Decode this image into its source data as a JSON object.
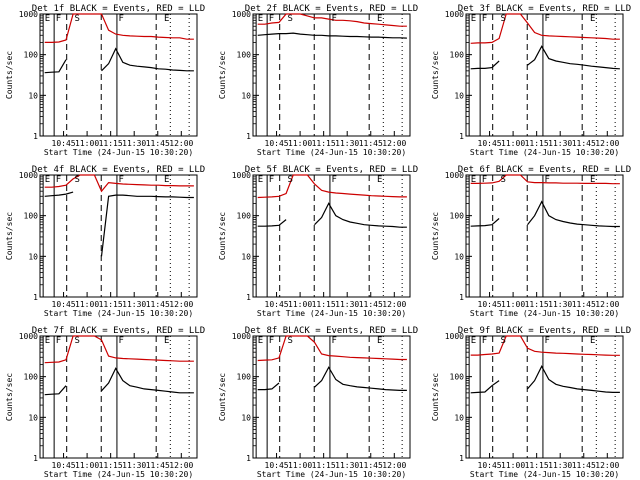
{
  "chart_data": [
    {
      "type": "line",
      "title": "Det 1f BLACK = Events, RED = LLD",
      "xlabel": "Start Time (24-Jun-15 10:30:20)",
      "ylabel": "Counts/sec",
      "xticks": [
        "10:45",
        "11:00",
        "11:15",
        "11:30",
        "11:45",
        "12:00"
      ],
      "yticks": [
        "1",
        "10",
        "100",
        "1000"
      ],
      "ylim": [
        1,
        1000
      ],
      "yscale": "log",
      "markers": [
        "E",
        "F",
        "S",
        "F",
        "E"
      ],
      "series": [
        {
          "name": "Events",
          "color": "#000000",
          "values": [
            36,
            37,
            38,
            75,
            null,
            null,
            null,
            null,
            40,
            60,
            140,
            65,
            55,
            52,
            50,
            48,
            45,
            44,
            42,
            41,
            40,
            40
          ]
        },
        {
          "name": "LLD",
          "color": "#cc0000",
          "values": [
            200,
            200,
            205,
            230,
            1000,
            1000,
            1000,
            1000,
            1000,
            400,
            320,
            300,
            290,
            285,
            280,
            280,
            270,
            265,
            260,
            260,
            240,
            240
          ]
        }
      ]
    },
    {
      "type": "line",
      "title": "Det 2f BLACK = Events, RED = LLD",
      "xlabel": "Start Time (24-Jun-15 10:30:20)",
      "ylabel": "Counts/sec",
      "xticks": [
        "10:45",
        "11:00",
        "11:15",
        "11:30",
        "11:45",
        "12:00"
      ],
      "yticks": [
        "1",
        "10",
        "100",
        "1000"
      ],
      "ylim": [
        1,
        1000
      ],
      "yscale": "log",
      "markers": [
        "E",
        "F",
        "S",
        "F",
        "E"
      ],
      "series": [
        {
          "name": "Events",
          "color": "#000000",
          "values": [
            300,
            310,
            320,
            330,
            330,
            340,
            320,
            310,
            300,
            300,
            290,
            290,
            285,
            280,
            280,
            275,
            270,
            270,
            265,
            260,
            260,
            255
          ]
        },
        {
          "name": "LLD",
          "color": "#cc0000",
          "values": [
            560,
            560,
            600,
            620,
            1000,
            1000,
            1000,
            900,
            800,
            800,
            750,
            700,
            700,
            680,
            650,
            600,
            580,
            560,
            540,
            520,
            500,
            500
          ]
        }
      ]
    },
    {
      "type": "line",
      "title": "Det 3f BLACK = Events, RED = LLD",
      "xlabel": "Start Time (24-Jun-15 10:30:20)",
      "ylabel": "Counts/sec",
      "xticks": [
        "10:45",
        "11:00",
        "11:15",
        "11:30",
        "11:45",
        "12:00"
      ],
      "yticks": [
        "1",
        "10",
        "100",
        "1000"
      ],
      "ylim": [
        1,
        1000
      ],
      "yscale": "log",
      "markers": [
        "E",
        "F",
        "S",
        "F",
        "E"
      ],
      "series": [
        {
          "name": "Events",
          "color": "#000000",
          "values": [
            45,
            46,
            46,
            48,
            70,
            null,
            null,
            null,
            55,
            75,
            160,
            80,
            70,
            65,
            60,
            58,
            55,
            52,
            50,
            48,
            46,
            45
          ]
        },
        {
          "name": "LLD",
          "color": "#cc0000",
          "values": [
            190,
            195,
            195,
            200,
            250,
            1000,
            1000,
            1000,
            600,
            350,
            300,
            290,
            285,
            280,
            275,
            270,
            265,
            260,
            255,
            250,
            240,
            240
          ]
        }
      ]
    },
    {
      "type": "line",
      "title": "Det 4f BLACK = Events, RED = LLD",
      "xlabel": "Start Time (24-Jun-15 10:30:20)",
      "ylabel": "Counts/sec",
      "xticks": [
        "10:45",
        "11:00",
        "11:15",
        "11:30",
        "11:45",
        "12:00"
      ],
      "yticks": [
        "1",
        "10",
        "100",
        "1000"
      ],
      "ylim": [
        1,
        1000
      ],
      "yscale": "log",
      "markers": [
        "E",
        "F",
        "S",
        "F",
        "E"
      ],
      "series": [
        {
          "name": "Events",
          "color": "#000000",
          "values": [
            300,
            310,
            320,
            340,
            380,
            null,
            null,
            null,
            10,
            300,
            320,
            320,
            310,
            300,
            300,
            300,
            295,
            290,
            290,
            285,
            280,
            280
          ]
        },
        {
          "name": "LLD",
          "color": "#cc0000",
          "values": [
            500,
            500,
            520,
            560,
            800,
            1000,
            1000,
            1000,
            400,
            650,
            620,
            600,
            590,
            580,
            570,
            560,
            560,
            550,
            550,
            540,
            540,
            540
          ]
        }
      ]
    },
    {
      "type": "line",
      "title": "Det 5f BLACK = Events, RED = LLD",
      "xlabel": "Start Time (24-Jun-15 10:30:20)",
      "ylabel": "Counts/sec",
      "xticks": [
        "10:45",
        "11:00",
        "11:15",
        "11:30",
        "11:45",
        "12:00"
      ],
      "yticks": [
        "1",
        "10",
        "100",
        "1000"
      ],
      "ylim": [
        1,
        1000
      ],
      "yscale": "log",
      "markers": [
        "E",
        "F",
        "S",
        "F",
        "E"
      ],
      "series": [
        {
          "name": "Events",
          "color": "#000000",
          "values": [
            55,
            55,
            56,
            58,
            80,
            null,
            null,
            null,
            60,
            90,
            200,
            100,
            80,
            70,
            65,
            60,
            58,
            56,
            55,
            54,
            52,
            52
          ]
        },
        {
          "name": "LLD",
          "color": "#cc0000",
          "values": [
            280,
            285,
            290,
            300,
            350,
            1000,
            1000,
            1000,
            600,
            420,
            380,
            360,
            350,
            340,
            330,
            320,
            310,
            305,
            300,
            295,
            290,
            290
          ]
        }
      ]
    },
    {
      "type": "line",
      "title": "Det 6f BLACK = Events, RED = LLD",
      "xlabel": "Start Time (24-Jun-15 10:30:20)",
      "ylabel": "Counts/sec",
      "xticks": [
        "10:45",
        "11:00",
        "11:15",
        "11:30",
        "11:45",
        "12:00"
      ],
      "yticks": [
        "1",
        "10",
        "100",
        "1000"
      ],
      "ylim": [
        1,
        1000
      ],
      "yscale": "log",
      "markers": [
        "E",
        "F",
        "S",
        "F",
        "E"
      ],
      "series": [
        {
          "name": "Events",
          "color": "#000000",
          "values": [
            55,
            56,
            57,
            60,
            85,
            null,
            null,
            null,
            60,
            100,
            220,
            100,
            80,
            72,
            66,
            62,
            60,
            58,
            56,
            55,
            54,
            54
          ]
        },
        {
          "name": "LLD",
          "color": "#cc0000",
          "values": [
            620,
            620,
            630,
            640,
            700,
            1000,
            1000,
            1000,
            680,
            650,
            650,
            640,
            640,
            630,
            630,
            630,
            620,
            620,
            620,
            620,
            610,
            610
          ]
        }
      ]
    },
    {
      "type": "line",
      "title": "Det 7f BLACK = Events, RED = LLD",
      "xlabel": "Start Time (24-Jun-15 10:30:20)",
      "ylabel": "Counts/sec",
      "xticks": [
        "10:45",
        "11:00",
        "11:15",
        "11:30",
        "11:45",
        "12:00"
      ],
      "yticks": [
        "1",
        "10",
        "100",
        "1000"
      ],
      "ylim": [
        1,
        1000
      ],
      "yscale": "log",
      "markers": [
        "E",
        "F",
        "S",
        "F",
        "E"
      ],
      "series": [
        {
          "name": "Events",
          "color": "#000000",
          "values": [
            36,
            37,
            38,
            60,
            null,
            null,
            null,
            null,
            45,
            70,
            160,
            80,
            60,
            55,
            50,
            48,
            46,
            44,
            42,
            40,
            40,
            40
          ]
        },
        {
          "name": "LLD",
          "color": "#cc0000",
          "values": [
            220,
            225,
            230,
            260,
            1000,
            1000,
            1000,
            1000,
            800,
            320,
            290,
            280,
            275,
            270,
            265,
            260,
            255,
            250,
            245,
            240,
            240,
            240
          ]
        }
      ]
    },
    {
      "type": "line",
      "title": "Det 8f BLACK = Events, RED = LLD",
      "xlabel": "Start Time (24-Jun-15 10:30:20)",
      "ylabel": "Counts/sec",
      "xticks": [
        "10:45",
        "11:00",
        "11:15",
        "11:30",
        "11:45",
        "12:00"
      ],
      "yticks": [
        "1",
        "10",
        "100",
        "1000"
      ],
      "ylim": [
        1,
        1000
      ],
      "yscale": "log",
      "markers": [
        "E",
        "F",
        "S",
        "F",
        "E"
      ],
      "series": [
        {
          "name": "Events",
          "color": "#000000",
          "values": [
            48,
            48,
            50,
            70,
            null,
            null,
            null,
            null,
            55,
            80,
            170,
            85,
            65,
            60,
            56,
            54,
            52,
            50,
            48,
            47,
            46,
            46
          ]
        },
        {
          "name": "LLD",
          "color": "#cc0000",
          "values": [
            250,
            255,
            260,
            290,
            1000,
            1000,
            1000,
            1000,
            700,
            360,
            330,
            320,
            310,
            300,
            295,
            290,
            285,
            280,
            275,
            270,
            265,
            265
          ]
        }
      ]
    },
    {
      "type": "line",
      "title": "Det 9f BLACK = Events, RED = LLD",
      "xlabel": "Start Time (24-Jun-15 10:30:20)",
      "ylabel": "Counts/sec",
      "xticks": [
        "10:45",
        "11:00",
        "11:15",
        "11:30",
        "11:45",
        "12:00"
      ],
      "yticks": [
        "1",
        "10",
        "100",
        "1000"
      ],
      "ylim": [
        1,
        1000
      ],
      "yscale": "log",
      "markers": [
        "E",
        "F",
        "S",
        "F",
        "E"
      ],
      "series": [
        {
          "name": "Events",
          "color": "#000000",
          "values": [
            40,
            41,
            42,
            60,
            80,
            null,
            null,
            null,
            50,
            80,
            180,
            85,
            65,
            58,
            54,
            50,
            48,
            46,
            44,
            42,
            41,
            41
          ]
        },
        {
          "name": "LLD",
          "color": "#cc0000",
          "values": [
            340,
            340,
            350,
            360,
            380,
            1000,
            1000,
            1000,
            500,
            420,
            400,
            390,
            380,
            375,
            370,
            360,
            355,
            350,
            345,
            340,
            335,
            335
          ]
        }
      ]
    }
  ]
}
